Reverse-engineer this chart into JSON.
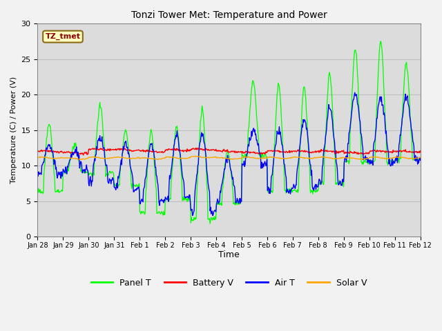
{
  "title": "Tonzi Tower Met: Temperature and Power",
  "xlabel": "Time",
  "ylabel": "Temperature (C) / Power (V)",
  "xlim": [
    0,
    15
  ],
  "ylim": [
    0,
    30
  ],
  "yticks": [
    0,
    5,
    10,
    15,
    20,
    25,
    30
  ],
  "xtick_labels": [
    "Jan 28",
    "Jan 29",
    "Jan 30",
    "Jan 31",
    "Feb 1",
    "Feb 2",
    "Feb 3",
    "Feb 4",
    "Feb 5",
    "Feb 6",
    "Feb 7",
    "Feb 8",
    "Feb 9",
    "Feb 10",
    "Feb 11",
    "Feb 12"
  ],
  "xtick_positions": [
    0,
    1,
    2,
    3,
    4,
    5,
    6,
    7,
    8,
    9,
    10,
    11,
    12,
    13,
    14,
    15
  ],
  "colors": {
    "panel_t": "#00FF00",
    "battery_v": "#FF0000",
    "air_t": "#0000FF",
    "solar_v": "#FFA500"
  },
  "legend_label": "TZ_tmet",
  "bg_color": "#E8E8E8",
  "plot_bg": "#DCDCDC",
  "grid_color": "#C8C8C8"
}
